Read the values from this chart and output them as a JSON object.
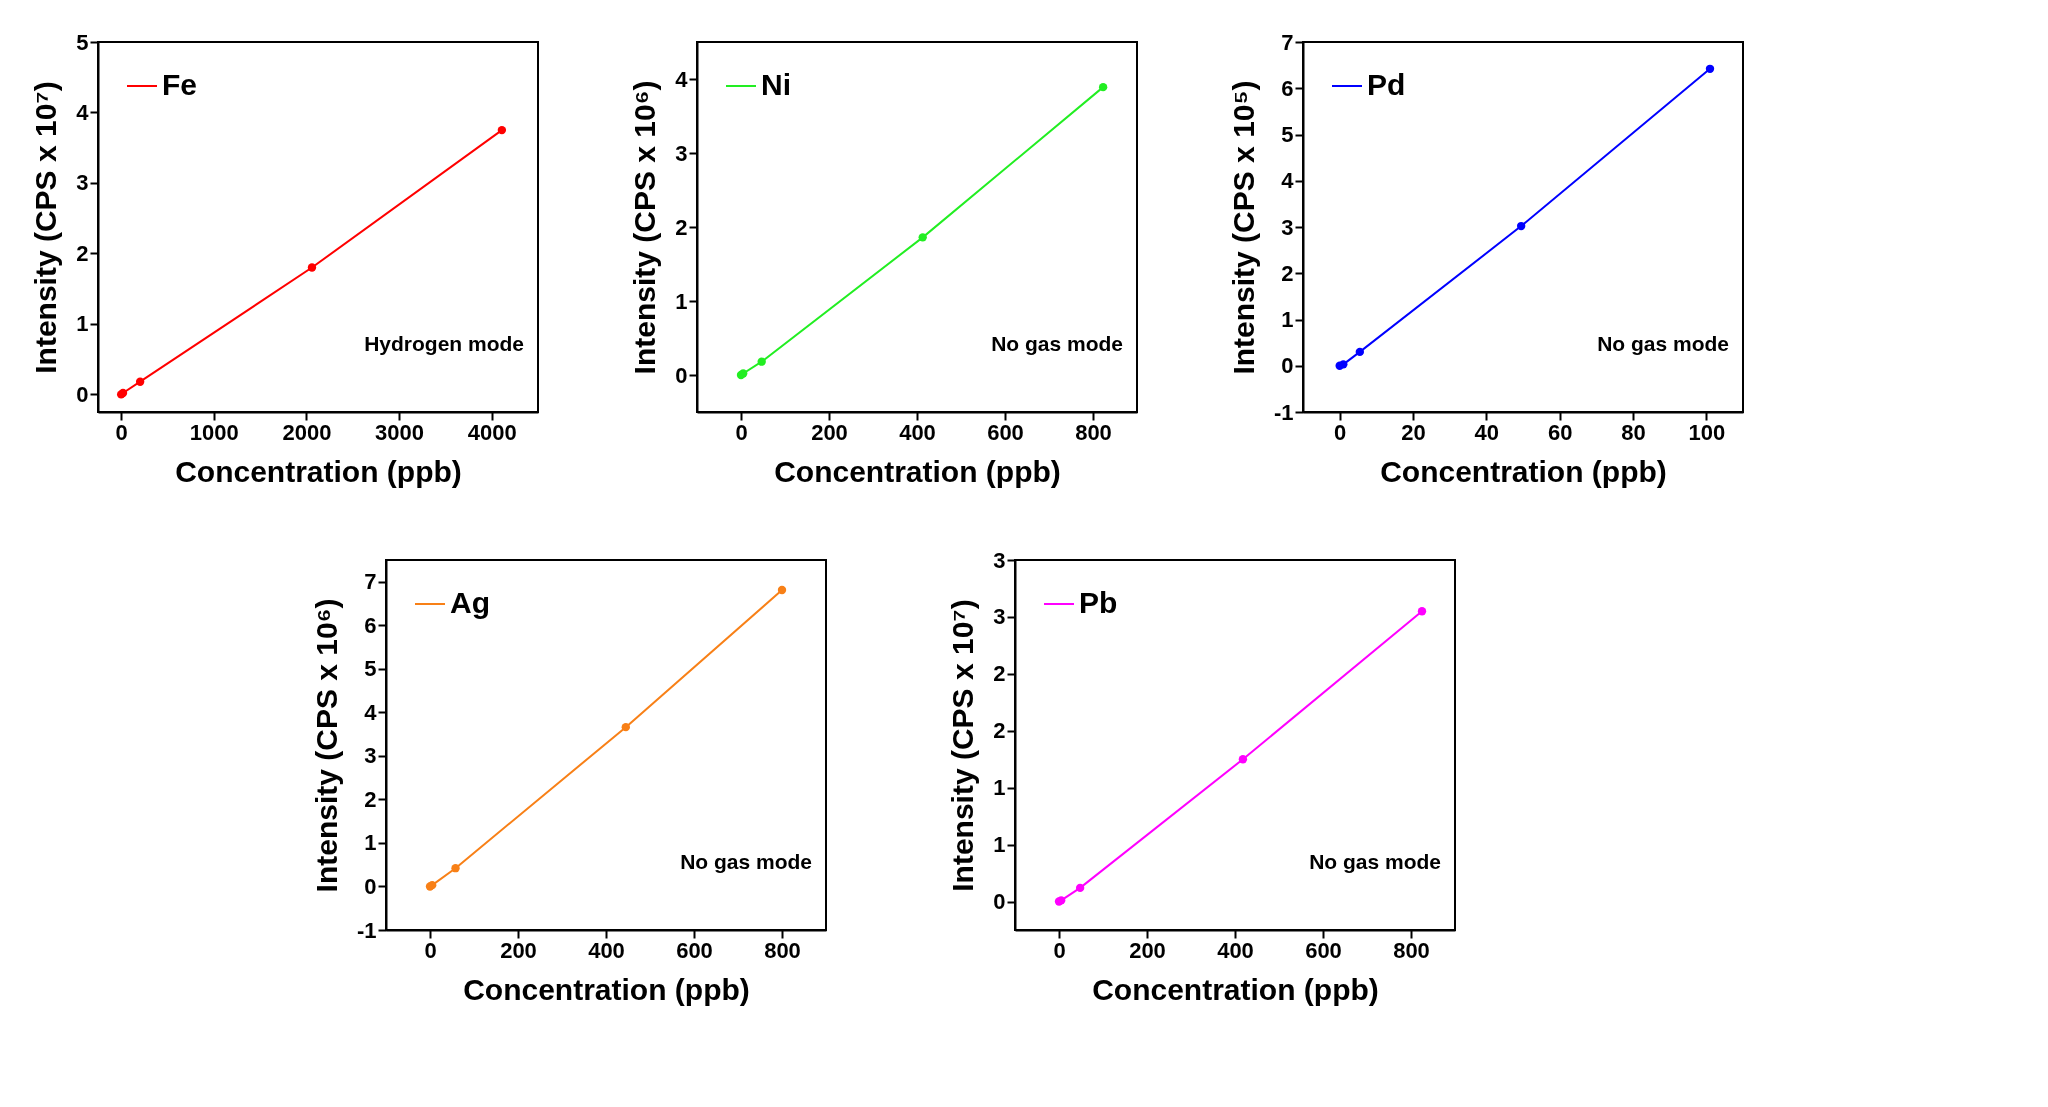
{
  "chart_data": [
    {
      "type": "line",
      "xlabel": "Concentration (ppb)",
      "ylabel": "Intensity (CPS x 10⁷)",
      "xlim": [
        -250,
        4500
      ],
      "ylim": [
        -0.25,
        5
      ],
      "xticks": [
        0,
        1000,
        2000,
        3000,
        4000
      ],
      "yticks": [
        0,
        1,
        2,
        3,
        4,
        5
      ],
      "marker": "circle",
      "legend": "top left",
      "annotations": [
        "Hydrogen mode"
      ],
      "series": [
        {
          "name": "Fe",
          "color": "#ff0000",
          "x": [
            0,
            20,
            205,
            2060,
            4110
          ],
          "values": [
            0,
            0.02,
            0.18,
            1.8,
            3.75
          ]
        }
      ]
    },
    {
      "type": "line",
      "xlabel": "Concentration (ppb)",
      "ylabel": "Intensity (CPS x 10⁶)",
      "xlim": [
        -100,
        900
      ],
      "ylim": [
        -0.5,
        4.5
      ],
      "xticks": [
        0,
        200,
        400,
        600,
        800
      ],
      "yticks": [
        0,
        1,
        2,
        3,
        4
      ],
      "marker": "circle",
      "legend": "top left",
      "annotations": [
        "No gas mode"
      ],
      "series": [
        {
          "name": "Ni",
          "color": "#22ee22",
          "x": [
            0,
            5,
            47,
            413,
            823
          ],
          "values": [
            0,
            0.02,
            0.18,
            1.86,
            3.89
          ]
        }
      ]
    },
    {
      "type": "line",
      "xlabel": "Concentration (ppb)",
      "ylabel": "Intensity (CPS x 10⁵)",
      "xlim": [
        -10,
        110
      ],
      "ylim": [
        -1,
        7
      ],
      "xticks": [
        0,
        20,
        40,
        60,
        80,
        100
      ],
      "yticks": [
        -1,
        0,
        1,
        2,
        3,
        4,
        5,
        6,
        7
      ],
      "marker": "circle",
      "legend": "top left",
      "annotations": [
        "No gas mode"
      ],
      "series": [
        {
          "name": "Pd",
          "color": "#0000ff",
          "x": [
            0,
            1,
            5.5,
            49.5,
            101
          ],
          "values": [
            0,
            0.03,
            0.3,
            3.02,
            6.42
          ]
        }
      ]
    },
    {
      "type": "line",
      "xlabel": "Concentration (ppb)",
      "ylabel": "Intensity (CPS x 10⁶)",
      "xlim": [
        -100,
        900
      ],
      "ylim": [
        -1,
        7.5
      ],
      "xticks": [
        0,
        200,
        400,
        600,
        800
      ],
      "yticks": [
        -1,
        0,
        1,
        2,
        3,
        4,
        5,
        6,
        7
      ],
      "marker": "circle",
      "legend": "top left",
      "annotations": [
        "No gas mode"
      ],
      "series": [
        {
          "name": "Ag",
          "color": "#f88017",
          "x": [
            0,
            5,
            58,
            445,
            800
          ],
          "values": [
            0,
            0.03,
            0.42,
            3.66,
            6.81
          ]
        }
      ]
    },
    {
      "type": "line",
      "xlabel": "Concentration (ppb)",
      "ylabel": "Intensity (CPS x 10⁷)",
      "xlim": [
        -100,
        900
      ],
      "ylim": [
        -0.25,
        3
      ],
      "xticks": [
        0,
        200,
        400,
        600,
        800
      ],
      "yticks": [
        0,
        {
          "value": 0.5,
          "label": "1"
        },
        1,
        {
          "value": 1.5,
          "label": "2"
        },
        2,
        {
          "value": 2.5,
          "label": "3"
        },
        3
      ],
      "marker": "circle",
      "legend": "top left",
      "annotations": [
        "No gas mode"
      ],
      "series": [
        {
          "name": "Pb",
          "color": "#ff00ff",
          "x": [
            0,
            5,
            48,
            418,
            825
          ],
          "values": [
            0,
            0.01,
            0.12,
            1.25,
            2.55
          ]
        }
      ]
    }
  ]
}
